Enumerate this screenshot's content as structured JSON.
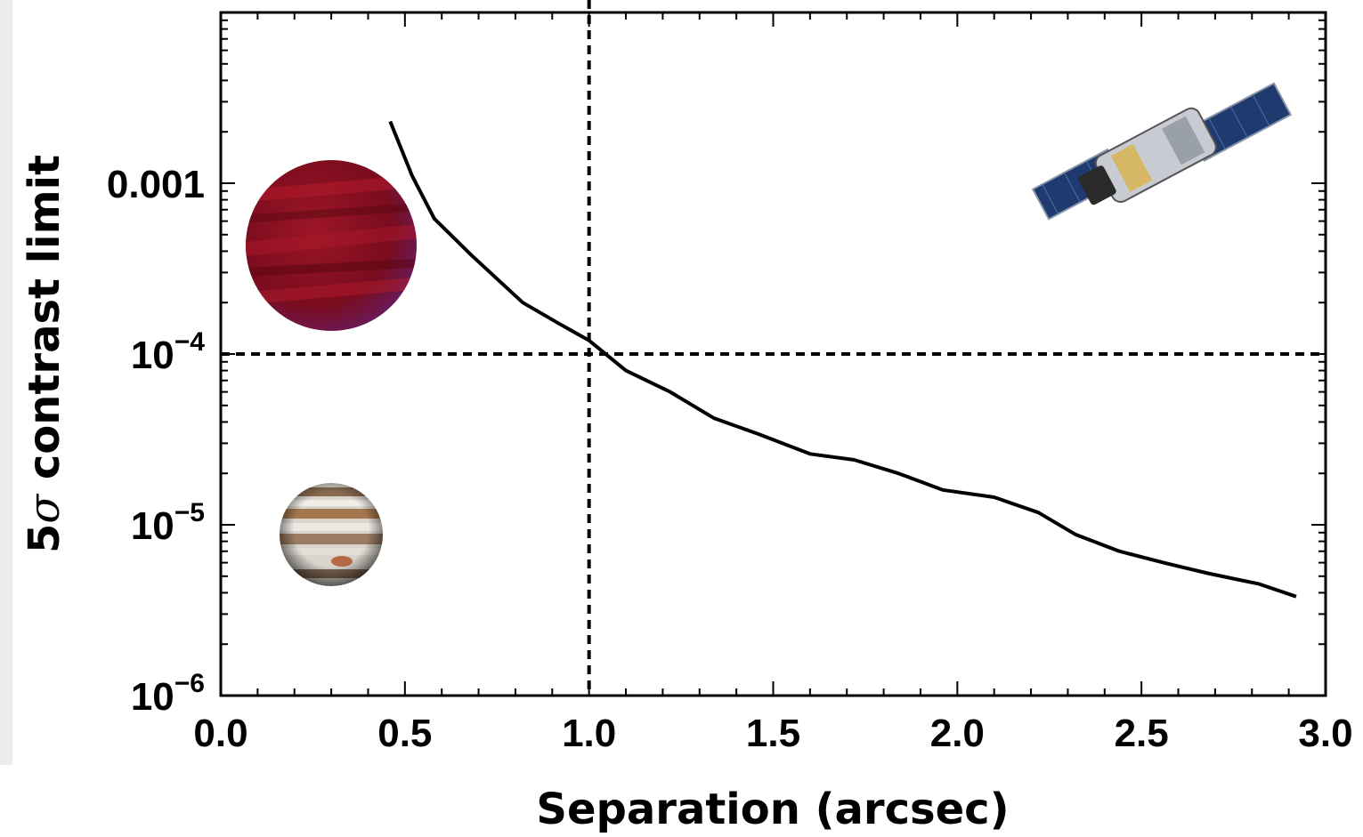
{
  "chart_data": {
    "type": "line",
    "title": "",
    "xlabel": "Separation (arcsec)",
    "ylabel_prefix": "5",
    "ylabel_symbol": "σ",
    "ylabel_suffix": " contrast limit",
    "xlim": [
      0.0,
      3.0
    ],
    "ylim": [
      1e-06,
      0.01
    ],
    "yscale": "log",
    "grid": false,
    "legend": "none",
    "xticks": [
      {
        "value": 0.0,
        "label": "0.0"
      },
      {
        "value": 0.5,
        "label": "0.5"
      },
      {
        "value": 1.0,
        "label": "1.0"
      },
      {
        "value": 1.5,
        "label": "1.5"
      },
      {
        "value": 2.0,
        "label": "2.0"
      },
      {
        "value": 2.5,
        "label": "2.5"
      },
      {
        "value": 3.0,
        "label": "3.0"
      }
    ],
    "yticks": [
      {
        "value": 1e-06,
        "base": "10",
        "exp": "−6"
      },
      {
        "value": 1e-05,
        "base": "10",
        "exp": "−5"
      },
      {
        "value": 0.0001,
        "base": "10",
        "exp": "−4"
      },
      {
        "value": 0.001,
        "base": "0.001",
        "exp": ""
      }
    ],
    "reference_lines": [
      {
        "orientation": "vertical",
        "value": 1.0,
        "style": "dashed"
      },
      {
        "orientation": "horizontal",
        "value": 0.0001,
        "style": "dashed"
      }
    ],
    "series": [
      {
        "color": "#000000",
        "x": [
          0.46,
          0.52,
          0.58,
          0.68,
          0.82,
          0.92,
          1.0,
          1.1,
          1.22,
          1.34,
          1.46,
          1.6,
          1.72,
          1.84,
          1.96,
          2.1,
          2.22,
          2.32,
          2.44,
          2.56,
          2.68,
          2.82,
          2.92
        ],
        "y": [
          0.0023,
          0.0011,
          0.00062,
          0.00038,
          0.0002,
          0.00015,
          0.00012,
          8e-05,
          6e-05,
          4.2e-05,
          3.4e-05,
          2.6e-05,
          2.4e-05,
          2e-05,
          1.6e-05,
          1.45e-05,
          1.18e-05,
          8.8e-06,
          7e-06,
          6e-06,
          5.2e-06,
          4.5e-06,
          3.8e-06
        ]
      }
    ]
  },
  "decorations": [
    {
      "name": "brown-dwarf-planet-image"
    },
    {
      "name": "jupiter-planet-image"
    },
    {
      "name": "hubble-telescope-image"
    }
  ]
}
